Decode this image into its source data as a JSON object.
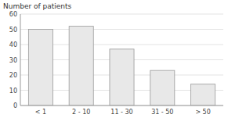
{
  "chart_data": {
    "type": "bar",
    "ylabel": "Number of patients",
    "categories": [
      "< 1",
      "2 - 10",
      "11 - 30",
      "31 - 50",
      "> 50"
    ],
    "values": [
      50,
      52,
      37,
      23,
      14
    ],
    "color": "#e8e8e8",
    "ylim": [
      0,
      60
    ],
    "yticks": [
      0,
      10,
      20,
      30,
      40,
      50,
      60
    ],
    "grid": true
  }
}
